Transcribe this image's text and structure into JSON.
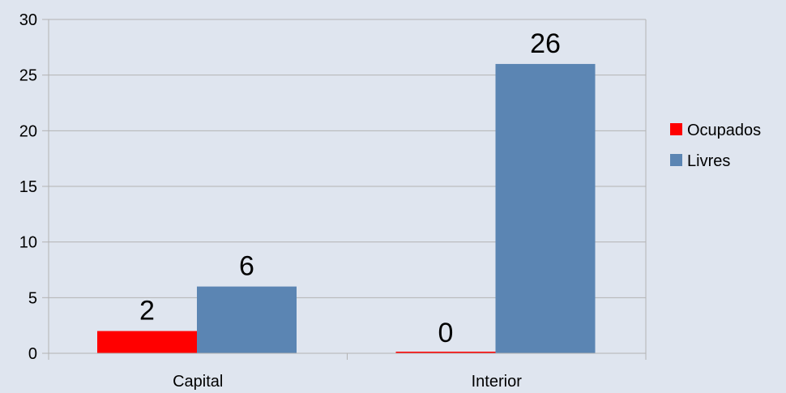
{
  "chart_data": {
    "type": "bar",
    "categories": [
      "Capital",
      "Interior"
    ],
    "series": [
      {
        "name": "Ocupados",
        "values": [
          2,
          0
        ],
        "color": "#ff0000"
      },
      {
        "name": "Livres",
        "values": [
          6,
          26
        ],
        "color": "#5b85b3"
      }
    ],
    "y_ticks": [
      "0",
      "5",
      "10",
      "15",
      "20",
      "25",
      "30"
    ],
    "ylim": [
      0,
      30
    ],
    "grid": true,
    "legend_position": "right",
    "data_labels": true
  }
}
